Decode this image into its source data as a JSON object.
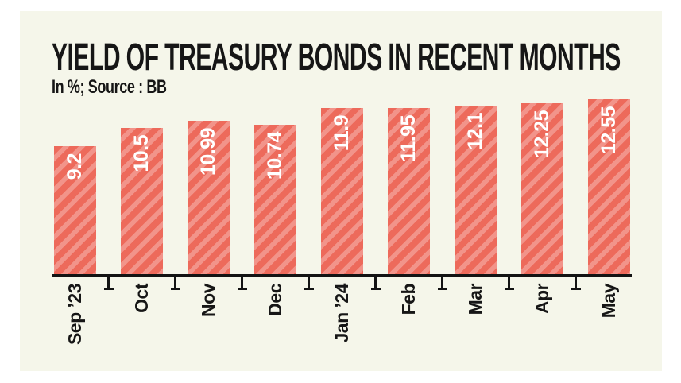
{
  "chart": {
    "title": "YIELD OF TREASURY BONDS IN RECENT MONTHS",
    "subtitle": "In %; Source : BB"
  },
  "chart_data": {
    "type": "bar",
    "title": "YIELD OF TREASURY BONDS IN RECENT MONTHS",
    "subtitle": "In %; Source : BB",
    "unit": "%",
    "categories": [
      "Sep ’23",
      "Oct",
      "Nov",
      "Dec",
      "Jan ’24",
      "Feb",
      "Mar",
      "Apr",
      "May"
    ],
    "values": [
      9.2,
      10.5,
      10.99,
      10.74,
      11.9,
      11.95,
      12.1,
      12.25,
      12.55
    ],
    "value_labels_rotated": true,
    "xlabel": "",
    "ylabel": "",
    "ylim": [
      0,
      12.55
    ],
    "grid": false,
    "legend": false,
    "colors": {
      "bar_base": "#ed6a5b",
      "bar_stripe": "#f2948a",
      "value_label": "#ffffff",
      "axis": "#131313",
      "text": "#161616",
      "panel_background": "#f5f6ea",
      "page_background": "#ffffff"
    }
  }
}
